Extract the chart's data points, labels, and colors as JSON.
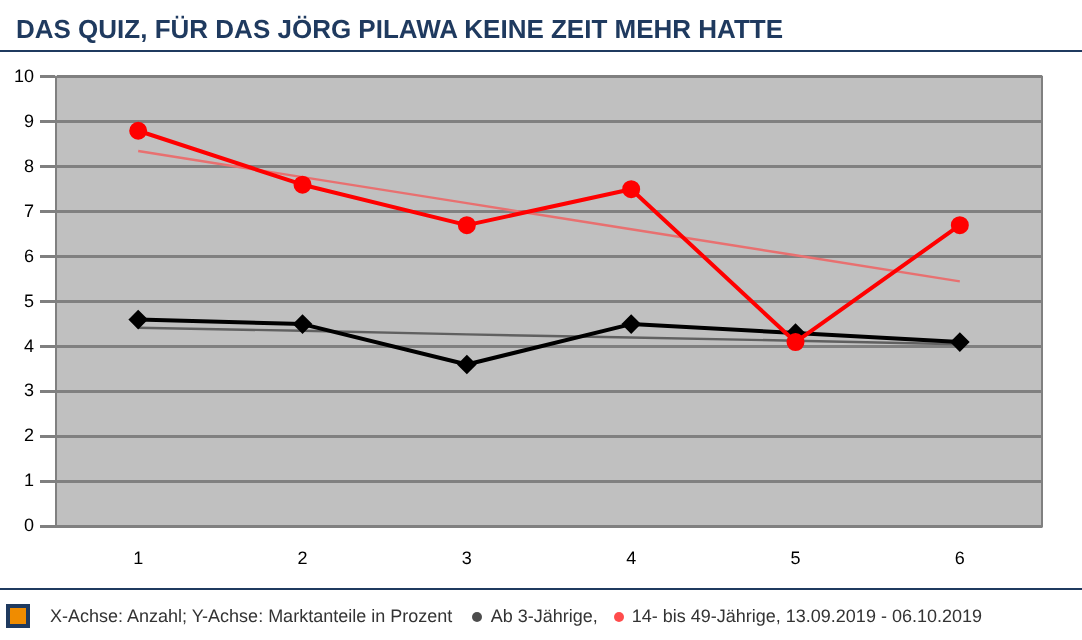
{
  "chart_data": {
    "type": "line",
    "title": "DAS QUIZ, FÜR DAS JÖRG PILAWA KEINE ZEIT MEHR HATTE",
    "categories": [
      "1",
      "2",
      "3",
      "4",
      "5",
      "6"
    ],
    "series": [
      {
        "color": "#606060",
        "values": [
          4.42,
          4.35,
          4.27,
          4.2,
          4.13,
          4.05
        ],
        "marker": "none"
      },
      {
        "color": "#e87070",
        "values": [
          8.35,
          7.77,
          7.19,
          6.61,
          6.03,
          5.45
        ],
        "marker": "none"
      },
      {
        "name": "Ab 3-Jährige,",
        "color": "#000000",
        "values": [
          4.6,
          4.5,
          3.6,
          4.5,
          4.3,
          4.1
        ],
        "marker": "diamond"
      },
      {
        "name": "14- bis 49-Jährige, 13.09.2019 - 06.10.2019",
        "color": "#ff0000",
        "values": [
          8.8,
          7.6,
          6.7,
          7.5,
          4.1,
          6.7
        ],
        "marker": "circle"
      }
    ],
    "ylim": [
      0,
      10
    ],
    "yticks": [
      0,
      1,
      2,
      3,
      4,
      5,
      6,
      7,
      8,
      9,
      10
    ],
    "grid": "y",
    "legend": "bottom right",
    "annotations": [
      "X-Achse: Anzahl; Y-Achse: Marktanteile in Prozent"
    ]
  }
}
